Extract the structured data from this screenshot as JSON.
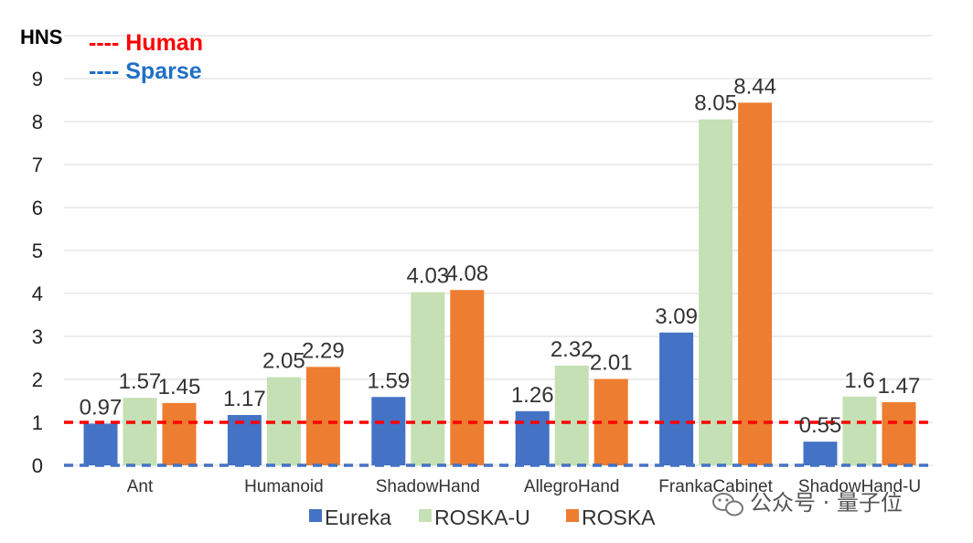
{
  "chart_data": {
    "type": "bar",
    "ylabel": "HNS",
    "ylim": [
      0,
      10
    ],
    "yticks": [
      "0",
      "1",
      "2",
      "3",
      "4",
      "5",
      "6",
      "7",
      "8",
      "9"
    ],
    "grid": true,
    "categories": [
      "Ant",
      "Humanoid",
      "ShadowHand",
      "AllegroHand",
      "FrankaCabinet",
      "ShadowHand-U"
    ],
    "series": [
      {
        "name": "Eureka",
        "color": "#4472C4",
        "values": [
          0.97,
          1.17,
          1.59,
          1.26,
          3.09,
          0.55
        ],
        "labels": [
          "0.97",
          "1.17",
          "1.59",
          "1.26",
          "3.09",
          "0.55"
        ]
      },
      {
        "name": "ROSKA-U",
        "color": "#C5E0B4",
        "values": [
          1.57,
          2.05,
          4.03,
          2.32,
          8.05,
          1.6
        ],
        "labels": [
          "1.57",
          "2.05",
          "4.03",
          "2.32",
          "8.05",
          "1.6"
        ]
      },
      {
        "name": "ROSKA",
        "color": "#ED7D31",
        "values": [
          1.45,
          2.29,
          4.08,
          2.01,
          8.44,
          1.47
        ],
        "labels": [
          "1.45",
          "2.29",
          "4.08",
          "2.01",
          "8.44",
          "1.47"
        ]
      }
    ],
    "reference_lines": [
      {
        "name": "Human",
        "value": 1,
        "color": "#FF0000",
        "label": "---- Human"
      },
      {
        "name": "Sparse",
        "value": 0,
        "color": "#4472C4",
        "label": "---- Sparse"
      }
    ],
    "legend_position": "bottom"
  },
  "watermark": {
    "text": "公众号 · 量子位",
    "icon": "wechat-icon"
  }
}
